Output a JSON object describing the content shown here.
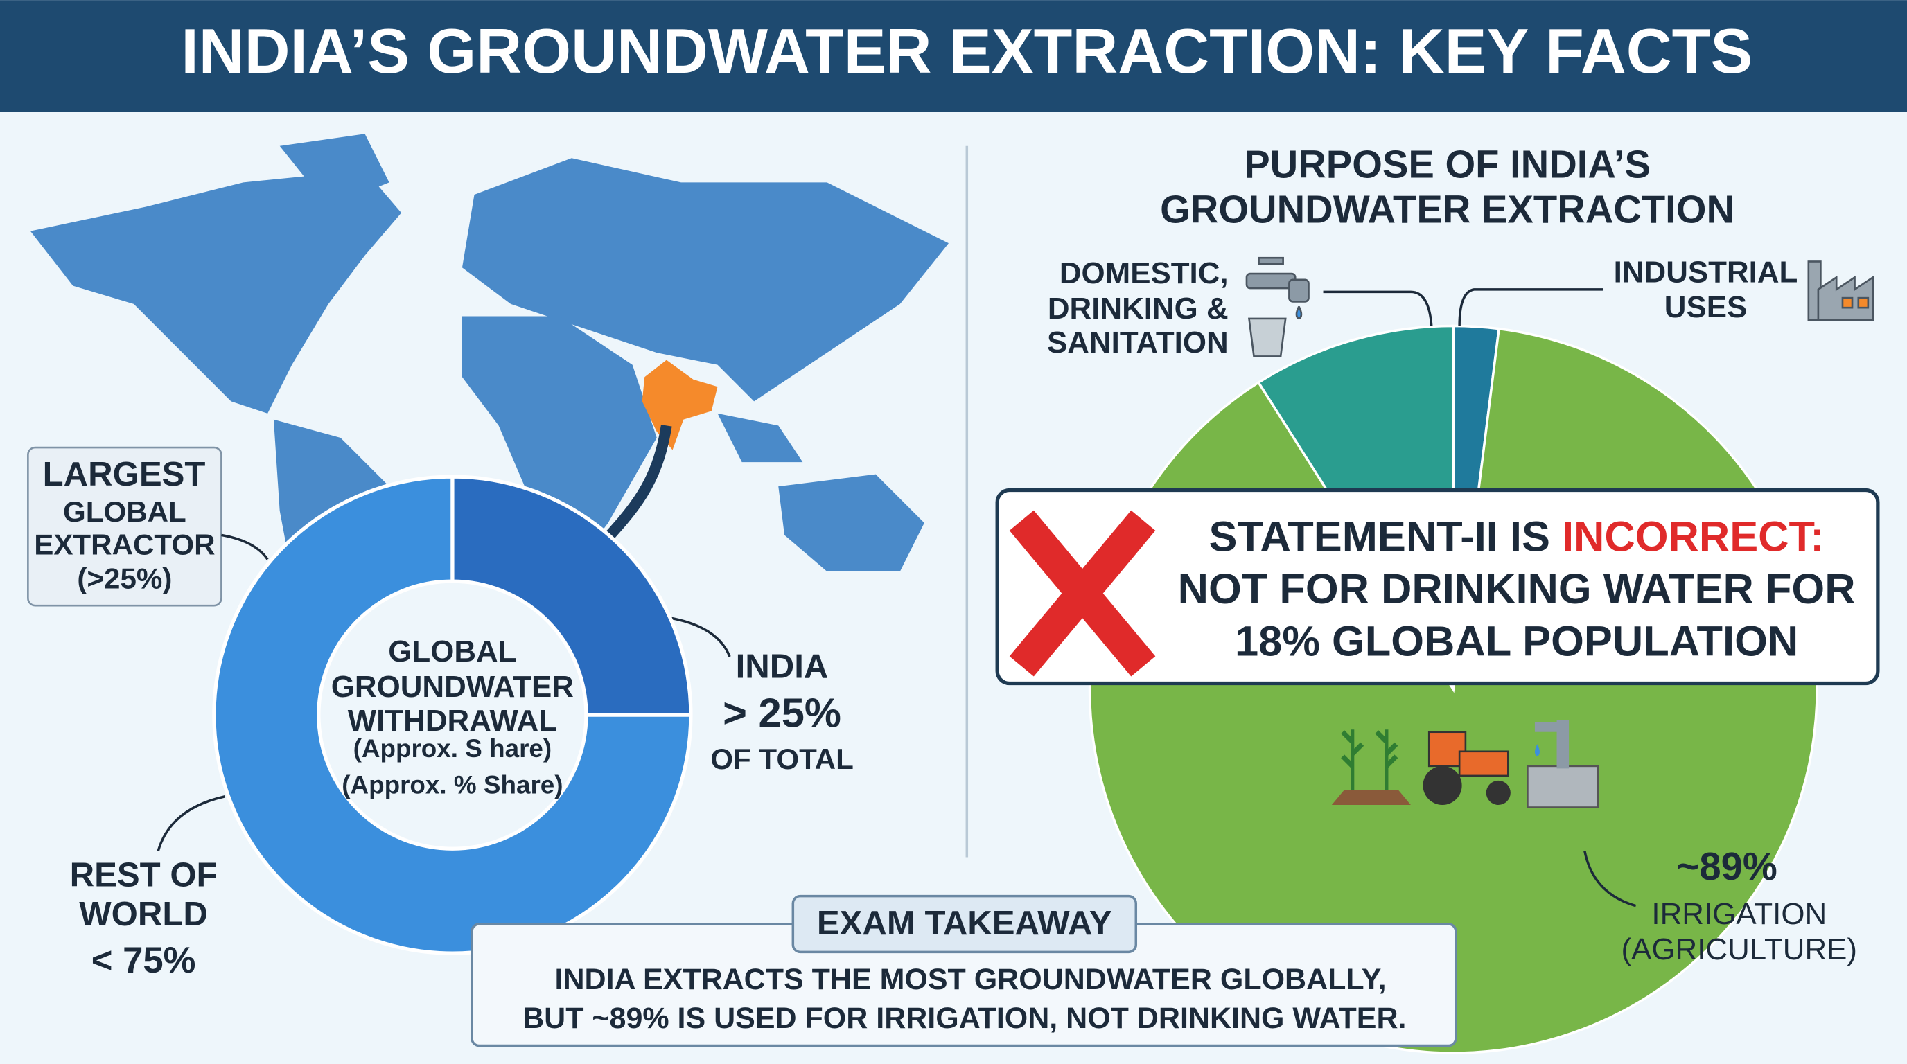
{
  "header": {
    "title": "INDIA’S GROUNDWATER EXTRACTION: KEY FACTS"
  },
  "chart_data": [
    {
      "type": "donut",
      "center_title": "GLOBAL GROUNDWATER WITHDRAWAL",
      "center_notes": [
        "(Approx. S hare)",
        "(Approx. % Share)"
      ],
      "categories": [
        "INDIA",
        "REST OF WORLD"
      ],
      "values": [
        25,
        75
      ],
      "value_labels": [
        "> 25%",
        "< 75%"
      ],
      "colors": [
        "#2a6cbf",
        "#3b8fdd"
      ],
      "annotation": "OF TOTAL"
    },
    {
      "type": "pie",
      "title": "PURPOSE OF INDIA’S GROUNDWATER EXTRACTION",
      "categories": [
        "DOMESTIC, DRINKING & SANITATION",
        "INDUSTRIAL USES",
        "IRRIGATION (AGRICULTURE)"
      ],
      "values": [
        9,
        2,
        89
      ],
      "value_labels": [
        null,
        null,
        "~89%"
      ],
      "colors": [
        "#2a9d8f",
        "#1f7a9c",
        "#78b648"
      ]
    }
  ],
  "callout": {
    "heading": "LARGEST",
    "text": "GLOBAL EXTRACTOR (>25%)"
  },
  "verdict": {
    "lead": "STATEMENT-II IS",
    "highlight": "INCORRECT:",
    "lines": [
      "NOT FOR DRINKING WATER FOR",
      "18% GLOBAL POPULATION"
    ]
  },
  "takeaway": {
    "label": "EXAM TAKEAWAY",
    "lines": [
      "INDIA EXTRACTS THE MOST GROUNDWATER GLOBALLY,",
      "BUT ~89% IS USED FOR IRRIGATION, NOT DRINKING WATER."
    ]
  }
}
